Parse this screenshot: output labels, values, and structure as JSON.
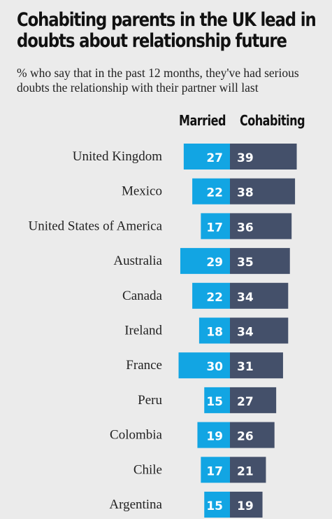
{
  "title_line1": "Cohabiting parents in the UK lead in",
  "title_line2": "doubts about relationship future",
  "subtitle": "% who say that in the past 12 months, they've had serious doubts the relationship with their partner will last",
  "colors": {
    "married": "#12a5e3",
    "cohabiting": "#44506a",
    "background": "#ebebeb"
  },
  "chart_data": {
    "type": "bar",
    "title": "Cohabiting parents in the UK lead in doubts about relationship future",
    "subtitle": "% who say that in the past 12 months, they've had serious doubts the relationship with their partner will last",
    "categories": [
      "United Kingdom",
      "Mexico",
      "United States of America",
      "Australia",
      "Canada",
      "Ireland",
      "France",
      "Peru",
      "Colombia",
      "Chile",
      "Argentina"
    ],
    "series": [
      {
        "name": "Married",
        "values": [
          27,
          22,
          17,
          29,
          22,
          18,
          30,
          15,
          19,
          17,
          15
        ]
      },
      {
        "name": "Cohabiting",
        "values": [
          39,
          38,
          36,
          35,
          34,
          34,
          31,
          27,
          26,
          21,
          19
        ]
      }
    ],
    "xlabel": "",
    "ylabel": "",
    "legend": "top column headers"
  }
}
